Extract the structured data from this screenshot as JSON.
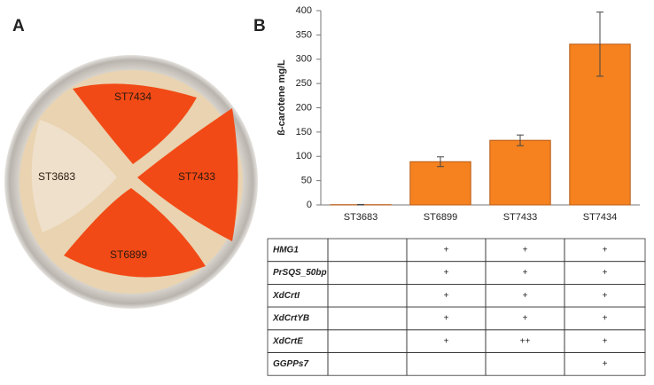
{
  "panel_a": {
    "label": "A",
    "plate_labels": [
      "ST7434",
      "ST3683",
      "ST7433",
      "ST6899"
    ]
  },
  "panel_b": {
    "label": "B"
  },
  "chart_data": {
    "type": "bar",
    "ylabel": "ß-carotene mg/L",
    "categories": [
      "ST3683",
      "ST6899",
      "ST7433",
      "ST7434"
    ],
    "values": [
      0.5,
      89,
      133,
      331
    ],
    "errors": [
      0.5,
      10,
      11,
      66
    ],
    "color": "#f5821f",
    "ylim": [
      0,
      400
    ],
    "yticks": [
      0,
      50,
      100,
      150,
      200,
      250,
      300,
      350,
      400
    ],
    "grid": false
  },
  "table": {
    "rows": [
      [
        "HMG1",
        null,
        "+",
        "+",
        "+"
      ],
      [
        "PrSQS_50bp",
        null,
        "+",
        "+",
        "+"
      ],
      [
        "XdCrtI",
        null,
        "+",
        "+",
        "+"
      ],
      [
        "XdCrtYB",
        null,
        "+",
        "+",
        "+"
      ],
      [
        "XdCrtE",
        null,
        "+",
        "++",
        "+"
      ],
      [
        "GGPPs7",
        null,
        null,
        null,
        "+"
      ]
    ]
  }
}
